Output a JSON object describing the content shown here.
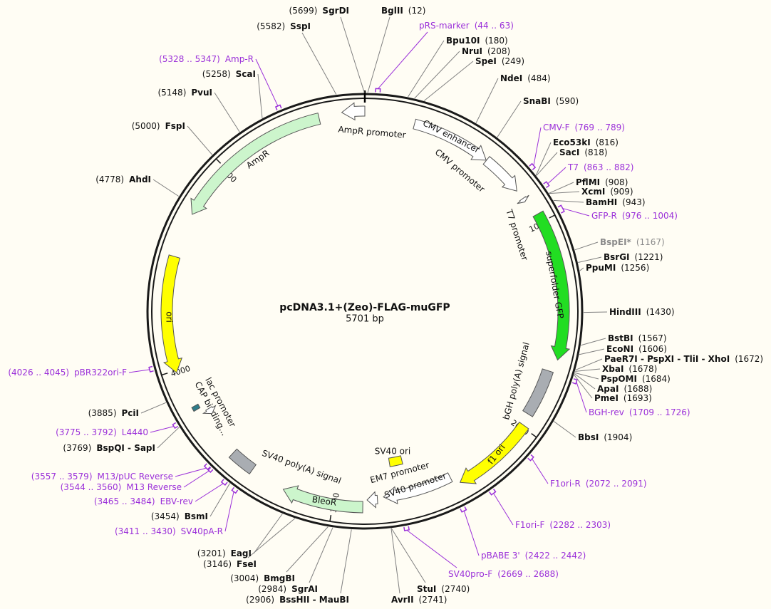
{
  "title": "pcDNA3.1+(Zeo)-FLAG-muGFP",
  "length": 5701,
  "length_label": "5701 bp",
  "ticks": [
    1000,
    2000,
    3000,
    4000,
    5000
  ],
  "sites": [
    {
      "name": "SgrDI",
      "position": 5699,
      "position_label": "(5699)"
    },
    {
      "name": "BglII",
      "position": 12,
      "position_label": "(12)"
    },
    {
      "name": "SspI",
      "position": 5582,
      "position_label": "(5582)"
    },
    {
      "name": "Bpu10I",
      "position": 180,
      "position_label": "(180)"
    },
    {
      "name": "NruI",
      "position": 208,
      "position_label": "(208)"
    },
    {
      "name": "SpeI",
      "position": 249,
      "position_label": "(249)"
    },
    {
      "name": "NdeI",
      "position": 484,
      "position_label": "(484)"
    },
    {
      "name": "SnaBI",
      "position": 590,
      "position_label": "(590)"
    },
    {
      "name": "Eco53kI",
      "position": 816,
      "position_label": "(816)"
    },
    {
      "name": "SacI",
      "position": 818,
      "position_label": "(818)"
    },
    {
      "name": "PflMI",
      "position": 908,
      "position_label": "(908)"
    },
    {
      "name": "XcmI",
      "position": 909,
      "position_label": "(909)"
    },
    {
      "name": "BamHI",
      "position": 943,
      "position_label": "(943)"
    },
    {
      "name": "BspEI*",
      "position": 1167,
      "position_label": "(1167)",
      "color": "#8a8a8a"
    },
    {
      "name": "BsrGI",
      "position": 1221,
      "position_label": "(1221)"
    },
    {
      "name": "PpuMI",
      "position": 1256,
      "position_label": "(1256)"
    },
    {
      "name": "HindIII",
      "position": 1430,
      "position_label": "(1430)"
    },
    {
      "name": "BstBI",
      "position": 1567,
      "position_label": "(1567)"
    },
    {
      "name": "EcoNI",
      "position": 1606,
      "position_label": "(1606)"
    },
    {
      "name": "PaeR7I - PspXI - TliI - XhoI",
      "position": 1672,
      "position_label": "(1672)"
    },
    {
      "name": "XbaI",
      "position": 1678,
      "position_label": "(1678)"
    },
    {
      "name": "PspOMI",
      "position": 1684,
      "position_label": "(1684)"
    },
    {
      "name": "ApaI",
      "position": 1688,
      "position_label": "(1688)"
    },
    {
      "name": "PmeI",
      "position": 1693,
      "position_label": "(1693)"
    },
    {
      "name": "BbsI",
      "position": 1904,
      "position_label": "(1904)"
    },
    {
      "name": "StuI",
      "position": 2740,
      "position_label": "(2740)"
    },
    {
      "name": "AvrII",
      "position": 2741,
      "position_label": "(2741)"
    },
    {
      "name": "BssHII - MauBI",
      "position": 2906,
      "position_label": "(2906)"
    },
    {
      "name": "SgrAI",
      "position": 2984,
      "position_label": "(2984)"
    },
    {
      "name": "BmgBI",
      "position": 3004,
      "position_label": "(3004)"
    },
    {
      "name": "FseI",
      "position": 3146,
      "position_label": "(3146)"
    },
    {
      "name": "EagI",
      "position": 3201,
      "position_label": "(3201)"
    },
    {
      "name": "BsmI",
      "position": 3454,
      "position_label": "(3454)"
    },
    {
      "name": "BspQI - SapI",
      "position": 3769,
      "position_label": "(3769)"
    },
    {
      "name": "PciI",
      "position": 3885,
      "position_label": "(3885)"
    },
    {
      "name": "AhdI",
      "position": 4778,
      "position_label": "(4778)"
    },
    {
      "name": "FspI",
      "position": 5000,
      "position_label": "(5000)"
    },
    {
      "name": "PvuI",
      "position": 5148,
      "position_label": "(5148)"
    },
    {
      "name": "ScaI",
      "position": 5258,
      "position_label": "(5258)"
    }
  ],
  "primers": [
    {
      "name": "pRS-marker",
      "start": 44,
      "end": 63,
      "range_label": "(44 .. 63)"
    },
    {
      "name": "Amp-R",
      "start": 5328,
      "end": 5347,
      "range_label": "(5328 .. 5347)"
    },
    {
      "name": "CMV-F",
      "start": 769,
      "end": 789,
      "range_label": "(769 .. 789)"
    },
    {
      "name": "T7",
      "start": 863,
      "end": 882,
      "range_label": "(863 .. 882)"
    },
    {
      "name": "GFP-R",
      "start": 976,
      "end": 1004,
      "range_label": "(976 .. 1004)"
    },
    {
      "name": "BGH-rev",
      "start": 1709,
      "end": 1726,
      "range_label": "(1709 .. 1726)"
    },
    {
      "name": "F1ori-R",
      "start": 2072,
      "end": 2091,
      "range_label": "(2072 .. 2091)"
    },
    {
      "name": "F1ori-F",
      "start": 2282,
      "end": 2303,
      "range_label": "(2282 .. 2303)"
    },
    {
      "name": "pBABE 3'",
      "start": 2422,
      "end": 2442,
      "range_label": "(2422 .. 2442)"
    },
    {
      "name": "SV40pro-F",
      "start": 2669,
      "end": 2688,
      "range_label": "(2669 .. 2688)"
    },
    {
      "name": "SV40pA-R",
      "start": 3411,
      "end": 3430,
      "range_label": "(3411 .. 3430)"
    },
    {
      "name": "EBV-rev",
      "start": 3465,
      "end": 3484,
      "range_label": "(3465 .. 3484)"
    },
    {
      "name": "M13 Reverse",
      "start": 3544,
      "end": 3560,
      "range_label": "(3544 .. 3560)"
    },
    {
      "name": "M13/pUC Reverse",
      "start": 3557,
      "end": 3579,
      "range_label": "(3557 .. 3579)"
    },
    {
      "name": "L4440",
      "start": 3775,
      "end": 3792,
      "range_label": "(3775 .. 3792)"
    },
    {
      "name": "pBR322ori-F",
      "start": 4026,
      "end": 4045,
      "range_label": "(4026 .. 4045)"
    }
  ],
  "features": [
    {
      "name": "AmpR promoter",
      "start": 5596,
      "end": 5701,
      "direction": "reverse",
      "color": "#ffffff"
    },
    {
      "name": "CMV enhancer",
      "start": 235,
      "end": 614,
      "direction": "forward",
      "color": "#ffffff"
    },
    {
      "name": "CMV promoter",
      "start": 615,
      "end": 818,
      "direction": "forward",
      "color": "#ffffff"
    },
    {
      "name": "T7 promoter",
      "start": 863,
      "end": 881,
      "direction": "forward",
      "color": "#ffffff"
    },
    {
      "name": "superfolder GFP",
      "start": 960,
      "end": 1650,
      "direction": "forward",
      "color": "#22dd22"
    },
    {
      "name": "bGH poly(A) signal",
      "start": 1710,
      "end": 1935,
      "direction": "none",
      "color": "#a9adb2"
    },
    {
      "name": "f1 ori",
      "start": 1990,
      "end": 2390,
      "direction": "forward",
      "color": "#ffff00"
    },
    {
      "name": "SV40 promoter",
      "start": 2420,
      "end": 2760,
      "direction": "forward",
      "color": "#ffffff"
    },
    {
      "name": "SV40 ori",
      "start": 2630,
      "end": 2705,
      "direction": "none",
      "color": "#ffff00"
    },
    {
      "name": "EM7 promoter",
      "start": 2790,
      "end": 2840,
      "direction": "forward",
      "color": "#ffffff"
    },
    {
      "name": "BleoR",
      "start": 2860,
      "end": 3240,
      "direction": "forward",
      "color": "#ccf5cc"
    },
    {
      "name": "SV40 poly(A) signal",
      "start": 3410,
      "end": 3530,
      "direction": "none",
      "color": "#a9adb2"
    },
    {
      "name": "CAP binding...",
      "start": 3795,
      "end": 3815,
      "direction": "none",
      "color": "#2e7d8a"
    },
    {
      "name": "lac promoter",
      "start": 3740,
      "end": 3770,
      "direction": "reverse",
      "color": "#ffffff"
    },
    {
      "name": "ori",
      "start": 3990,
      "end": 4530,
      "direction": "reverse",
      "color": "#ffff00"
    },
    {
      "name": "AmpR",
      "start": 4740,
      "end": 5490,
      "direction": "reverse",
      "color": "#ccf5cc"
    }
  ]
}
